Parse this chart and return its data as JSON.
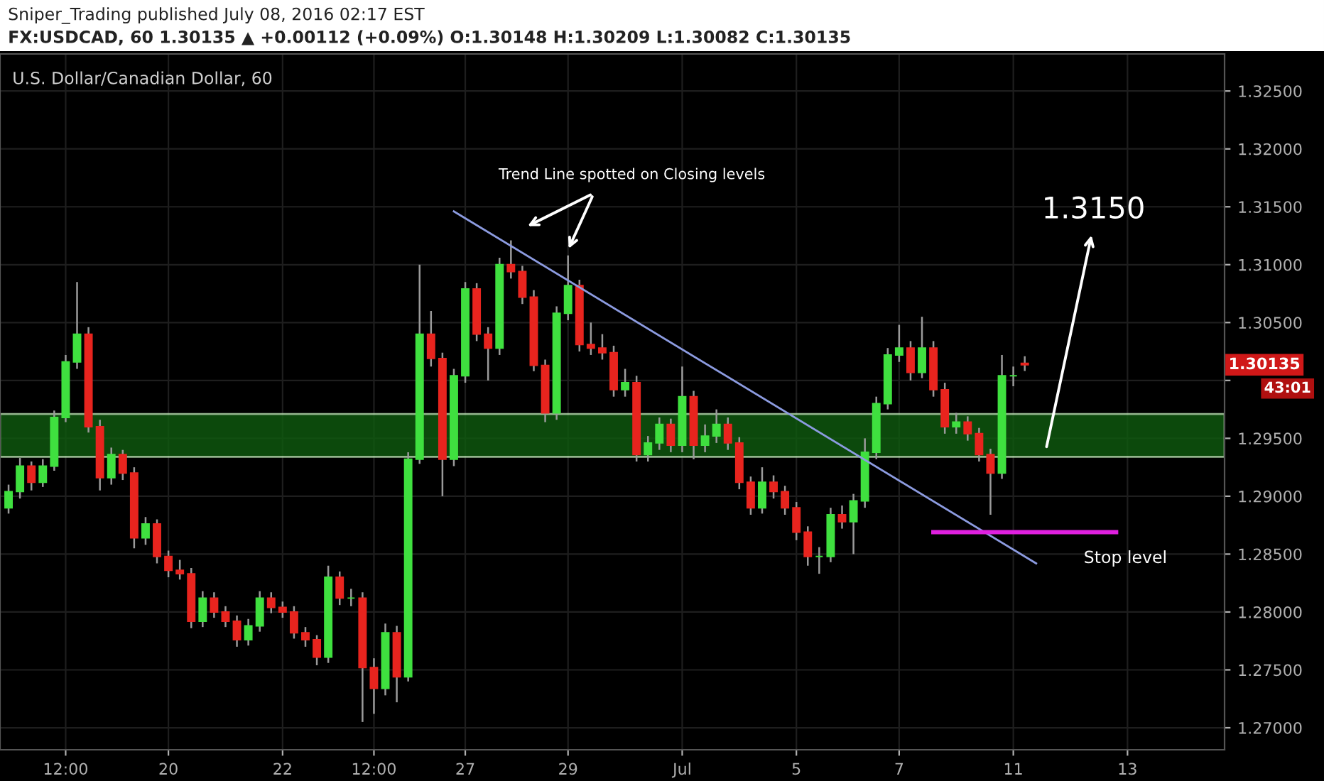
{
  "chart_data": {
    "type": "candlestick",
    "annotations": [
      "Sniper_Trading published July 08, 2016 02:17 EST",
      "FX:USDCAD, 60 1.30135 ▲ +0.00112 (+0.09%) O:1.30148 H:1.30209 L:1.30082 C:1.30135",
      "U.S. Dollar/Canadian Dollar, 60",
      "Trend Line spotted on Closing levels",
      "1.3150",
      "Stop level",
      "1.30135",
      "43:01"
    ],
    "categories": [
      null,
      null,
      null,
      null,
      null,
      "12:00",
      null,
      null,
      null,
      null,
      null,
      null,
      null,
      null,
      "20",
      null,
      null,
      null,
      null,
      null,
      null,
      null,
      null,
      null,
      "22",
      null,
      null,
      null,
      null,
      null,
      null,
      null,
      "12:00",
      null,
      null,
      null,
      null,
      null,
      null,
      null,
      "27",
      null,
      null,
      null,
      null,
      null,
      null,
      null,
      null,
      "29",
      null,
      null,
      null,
      null,
      null,
      null,
      null,
      null,
      null,
      "Jul",
      null,
      null,
      null,
      null,
      null,
      null,
      null,
      null,
      null,
      "5",
      null,
      null,
      null,
      null,
      null,
      null,
      null,
      null,
      "7",
      null,
      null,
      null,
      null,
      null,
      null,
      null,
      null,
      null,
      "11",
      null,
      null,
      null,
      null,
      null,
      null,
      null,
      null,
      null,
      "13",
      null,
      null,
      null,
      null,
      null,
      null,
      null,
      null
    ],
    "ylim": [
      1.2681,
      1.3282
    ],
    "yticks": [
      {
        "value": 1.27,
        "label": "1.27000"
      },
      {
        "value": 1.275,
        "label": "1.27500"
      },
      {
        "value": 1.28,
        "label": "1.28000"
      },
      {
        "value": 1.285,
        "label": "1.28500"
      },
      {
        "value": 1.29,
        "label": "1.29000"
      },
      {
        "value": 1.295,
        "label": "1.29500"
      },
      {
        "value": 1.3,
        "label": null
      },
      {
        "value": 1.305,
        "label": "1.30500"
      },
      {
        "value": 1.31,
        "label": "1.31000"
      },
      {
        "value": 1.315,
        "label": "1.31500"
      },
      {
        "value": 1.32,
        "label": "1.32000"
      },
      {
        "value": 1.325,
        "label": "1.32500"
      }
    ],
    "grid": true,
    "bands": [
      {
        "axis": "y",
        "from": 1.2934,
        "to": 1.2971,
        "color": "#0f5c0f"
      }
    ],
    "series": [
      {
        "ohlc": [
          [
            1.289,
            1.291,
            1.2885,
            1.2904
          ],
          [
            1.2904,
            1.2933,
            1.2898,
            1.2926
          ],
          [
            1.2926,
            1.293,
            1.2905,
            1.2912
          ],
          [
            1.2912,
            1.2932,
            1.2908,
            1.2926
          ],
          [
            1.2926,
            1.2974,
            1.2922,
            1.2968
          ],
          [
            1.2968,
            1.3022,
            1.2964,
            1.3016
          ],
          [
            1.3016,
            1.3085,
            1.301,
            1.304
          ],
          [
            1.304,
            1.3046,
            1.2955,
            1.296
          ],
          [
            1.296,
            1.2966,
            1.2905,
            1.2916
          ],
          [
            1.2916,
            1.2942,
            1.291,
            1.2936
          ],
          [
            1.2936,
            1.294,
            1.2914,
            1.292
          ],
          [
            1.292,
            1.2925,
            1.2855,
            1.2864
          ],
          [
            1.2864,
            1.2882,
            1.2858,
            1.2876
          ],
          [
            1.2876,
            1.288,
            1.2842,
            1.2848
          ],
          [
            1.2848,
            1.2853,
            1.283,
            1.2836
          ],
          [
            1.2836,
            1.2845,
            1.2828,
            1.2833
          ],
          [
            1.2833,
            1.2838,
            1.2786,
            1.2792
          ],
          [
            1.2792,
            1.2818,
            1.2787,
            1.2812
          ],
          [
            1.2812,
            1.2817,
            1.2795,
            1.28
          ],
          [
            1.28,
            1.2805,
            1.2787,
            1.2792
          ],
          [
            1.2792,
            1.2797,
            1.277,
            1.2776
          ],
          [
            1.2776,
            1.2794,
            1.2771,
            1.2788
          ],
          [
            1.2788,
            1.2818,
            1.2783,
            1.2812
          ],
          [
            1.2812,
            1.2817,
            1.2799,
            1.2804
          ],
          [
            1.2804,
            1.2809,
            1.2795,
            1.28
          ],
          [
            1.28,
            1.2805,
            1.2777,
            1.2782
          ],
          [
            1.2782,
            1.2787,
            1.277,
            1.2776
          ],
          [
            1.2776,
            1.278,
            1.2754,
            1.2761
          ],
          [
            1.2761,
            1.284,
            1.2756,
            1.283
          ],
          [
            1.283,
            1.2835,
            1.2806,
            1.2812
          ],
          [
            1.2812,
            1.282,
            1.2805,
            1.2812
          ],
          [
            1.2812,
            1.2817,
            1.2705,
            1.2752
          ],
          [
            1.2752,
            1.276,
            1.2712,
            1.2734
          ],
          [
            1.2734,
            1.279,
            1.2728,
            1.2782
          ],
          [
            1.2782,
            1.2788,
            1.2722,
            1.2744
          ],
          [
            1.2744,
            1.2938,
            1.274,
            1.2932
          ],
          [
            1.2932,
            1.31,
            1.2928,
            1.304
          ],
          [
            1.304,
            1.306,
            1.3012,
            1.3019
          ],
          [
            1.3019,
            1.3024,
            1.29,
            1.2932
          ],
          [
            1.2932,
            1.301,
            1.2926,
            1.3004
          ],
          [
            1.3004,
            1.3085,
            1.2998,
            1.3079
          ],
          [
            1.3079,
            1.3084,
            1.3034,
            1.304
          ],
          [
            1.304,
            1.3046,
            1.3,
            1.3028
          ],
          [
            1.3028,
            1.3106,
            1.3022,
            1.31
          ],
          [
            1.31,
            1.3121,
            1.3088,
            1.3094
          ],
          [
            1.3094,
            1.3099,
            1.3066,
            1.3072
          ],
          [
            1.3072,
            1.3078,
            1.3008,
            1.3013
          ],
          [
            1.3013,
            1.3018,
            1.2964,
            1.2972
          ],
          [
            1.2972,
            1.3064,
            1.2966,
            1.3058
          ],
          [
            1.3058,
            1.3108,
            1.3052,
            1.3082
          ],
          [
            1.3082,
            1.3087,
            1.3025,
            1.3031
          ],
          [
            1.3031,
            1.305,
            1.3022,
            1.3028
          ],
          [
            1.3028,
            1.304,
            1.3018,
            1.3024
          ],
          [
            1.3024,
            1.303,
            1.2986,
            1.2992
          ],
          [
            1.2992,
            1.301,
            1.2986,
            1.2998
          ],
          [
            1.2998,
            1.3004,
            1.293,
            1.2936
          ],
          [
            1.2936,
            1.2952,
            1.293,
            1.2946
          ],
          [
            1.2946,
            1.2968,
            1.294,
            1.2962
          ],
          [
            1.2962,
            1.2967,
            1.2938,
            1.2944
          ],
          [
            1.2944,
            1.3012,
            1.2938,
            1.2986
          ],
          [
            1.2986,
            1.2991,
            1.2932,
            1.2944
          ],
          [
            1.2944,
            1.2962,
            1.2938,
            1.2952
          ],
          [
            1.2952,
            1.2975,
            1.2946,
            1.2962
          ],
          [
            1.2962,
            1.2968,
            1.294,
            1.2946
          ],
          [
            1.2946,
            1.2951,
            1.2906,
            1.2912
          ],
          [
            1.2912,
            1.2917,
            1.2884,
            1.289
          ],
          [
            1.289,
            1.2925,
            1.2885,
            1.2912
          ],
          [
            1.2912,
            1.2918,
            1.2898,
            1.2904
          ],
          [
            1.2904,
            1.2909,
            1.2884,
            1.289
          ],
          [
            1.289,
            1.2895,
            1.2862,
            1.2869
          ],
          [
            1.2869,
            1.2874,
            1.284,
            1.2848
          ],
          [
            1.2848,
            1.2856,
            1.2833,
            1.2848
          ],
          [
            1.2848,
            1.289,
            1.2843,
            1.2884
          ],
          [
            1.2884,
            1.2892,
            1.2872,
            1.2878
          ],
          [
            1.2878,
            1.2902,
            1.285,
            1.2896
          ],
          [
            1.2896,
            1.295,
            1.289,
            1.2938
          ],
          [
            1.2938,
            1.2986,
            1.2932,
            1.298
          ],
          [
            1.298,
            1.3028,
            1.2975,
            1.3022
          ],
          [
            1.3022,
            1.3048,
            1.3016,
            1.3028
          ],
          [
            1.3028,
            1.3034,
            1.3,
            1.3007
          ],
          [
            1.3007,
            1.3055,
            1.3002,
            1.3028
          ],
          [
            1.3028,
            1.3034,
            1.2986,
            1.2992
          ],
          [
            1.2992,
            1.2998,
            1.2954,
            1.296
          ],
          [
            1.296,
            1.2972,
            1.2954,
            1.2964
          ],
          [
            1.2964,
            1.2969,
            1.2948,
            1.2954
          ],
          [
            1.2954,
            1.2959,
            1.293,
            1.2936
          ],
          [
            1.2936,
            1.2941,
            1.2884,
            1.292
          ],
          [
            1.292,
            1.3022,
            1.2915,
            1.3004
          ],
          [
            1.3004,
            1.3012,
            1.2995,
            1.3004
          ],
          [
            1.30148,
            1.30209,
            1.30082,
            1.30135
          ],
          null,
          null,
          null,
          null,
          null,
          null,
          null,
          null,
          null,
          null,
          null,
          null,
          null,
          null,
          null,
          null,
          null
        ],
        "colors": [
          "#3fe03f",
          "#3fe03f",
          "#e8241e",
          "#3fe03f",
          "#3fe03f",
          "#3fe03f",
          "#3fe03f",
          "#e8241e",
          "#e8241e",
          "#3fe03f",
          "#e8241e",
          "#e8241e",
          "#3fe03f",
          "#e8241e",
          "#e8241e",
          "#e8241e",
          "#e8241e",
          "#3fe03f",
          "#e8241e",
          "#e8241e",
          "#e8241e",
          "#3fe03f",
          "#3fe03f",
          "#e8241e",
          "#e8241e",
          "#e8241e",
          "#e8241e",
          "#e8241e",
          "#3fe03f",
          "#e8241e",
          "#3fe03f",
          "#e8241e",
          "#e8241e",
          "#3fe03f",
          "#e8241e",
          "#3fe03f",
          "#3fe03f",
          "#e8241e",
          "#e8241e",
          "#3fe03f",
          "#3fe03f",
          "#e8241e",
          "#e8241e",
          "#3fe03f",
          "#e8241e",
          "#e8241e",
          "#e8241e",
          "#e8241e",
          "#3fe03f",
          "#3fe03f",
          "#e8241e",
          "#e8241e",
          "#e8241e",
          "#e8241e",
          "#3fe03f",
          "#e8241e",
          "#3fe03f",
          "#3fe03f",
          "#e8241e",
          "#3fe03f",
          "#e8241e",
          "#3fe03f",
          "#3fe03f",
          "#e8241e",
          "#e8241e",
          "#e8241e",
          "#3fe03f",
          "#e8241e",
          "#e8241e",
          "#e8241e",
          "#e8241e",
          "#3fe03f",
          "#3fe03f",
          "#e8241e",
          "#3fe03f",
          "#3fe03f",
          "#3fe03f",
          "#3fe03f",
          "#3fe03f",
          "#e8241e",
          "#3fe03f",
          "#e8241e",
          "#e8241e",
          "#3fe03f",
          "#e8241e",
          "#e8241e",
          "#e8241e",
          "#3fe03f",
          "#3fe03f",
          "#e8241e",
          null,
          null,
          null,
          null,
          null,
          null,
          null,
          null,
          null,
          null,
          null,
          null,
          null,
          null,
          null,
          null,
          null
        ]
      },
      {
        "type": "line",
        "color": "#8c9be0",
        "values": [
          null,
          null,
          null,
          null,
          null,
          null,
          null,
          null,
          null,
          null,
          null,
          null,
          null,
          null,
          null,
          null,
          null,
          null,
          null,
          null,
          null,
          null,
          null,
          null,
          null,
          null,
          null,
          null,
          null,
          null,
          null,
          null,
          null,
          null,
          null,
          null,
          null,
          null,
          null,
          1.3146,
          null,
          null,
          null,
          null,
          null,
          null,
          null,
          null,
          null,
          null,
          null,
          null,
          null,
          null,
          null,
          null,
          null,
          null,
          null,
          null,
          null,
          null,
          null,
          null,
          null,
          null,
          null,
          null,
          null,
          null,
          null,
          null,
          null,
          null,
          null,
          null,
          null,
          null,
          null,
          null,
          null,
          null,
          null,
          null,
          null,
          null,
          null,
          null,
          null,
          null,
          1.2842,
          null,
          null,
          null,
          null,
          null,
          null,
          null,
          null,
          null,
          null,
          null,
          null,
          null,
          null,
          null,
          null
        ]
      },
      {
        "type": "line",
        "color": "#e020e0",
        "values": [
          null,
          null,
          null,
          null,
          null,
          null,
          null,
          null,
          null,
          null,
          null,
          null,
          null,
          null,
          null,
          null,
          null,
          null,
          null,
          null,
          null,
          null,
          null,
          null,
          null,
          null,
          null,
          null,
          null,
          null,
          null,
          null,
          null,
          null,
          null,
          null,
          null,
          null,
          null,
          null,
          null,
          null,
          null,
          null,
          null,
          null,
          null,
          null,
          null,
          null,
          null,
          null,
          null,
          null,
          null,
          null,
          null,
          null,
          null,
          null,
          null,
          null,
          null,
          null,
          null,
          null,
          null,
          null,
          null,
          null,
          null,
          null,
          null,
          null,
          null,
          null,
          null,
          null,
          null,
          null,
          null,
          1.2869,
          null,
          null,
          null,
          null,
          null,
          null,
          null,
          null,
          null,
          null,
          null,
          null,
          null,
          null,
          null,
          1.2869,
          null,
          null,
          null,
          null,
          null,
          null,
          null,
          null,
          null
        ]
      }
    ],
    "legend": false
  }
}
